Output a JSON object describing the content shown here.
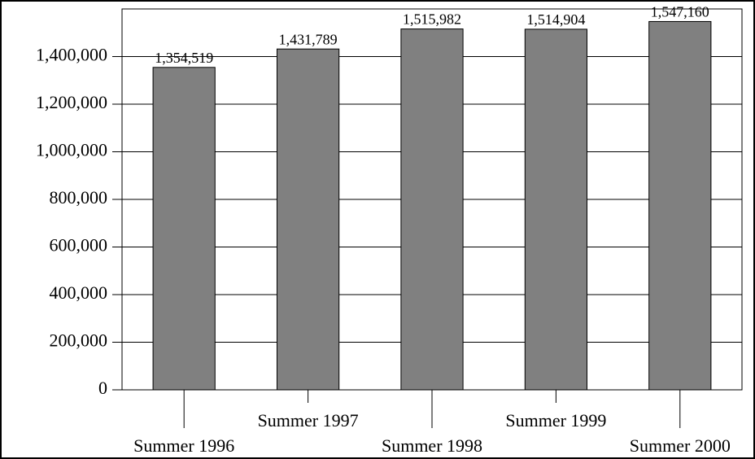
{
  "chart_data": {
    "type": "bar",
    "categories": [
      "Summer 1996",
      "Summer 1997",
      "Summer 1998",
      "Summer 1999",
      "Summer 2000"
    ],
    "values": [
      1354519,
      1431789,
      1515982,
      1514904,
      1547160
    ],
    "value_labels": [
      "1,354,519",
      "1,431,789",
      "1,515,982",
      "1,514,904",
      "1,547,160"
    ],
    "color": "#808080",
    "ylim": [
      0,
      1600000
    ],
    "yticks": [
      0,
      {
        "value": 200000,
        "label": "200,000"
      },
      {
        "value": 400000,
        "label": "400,000"
      },
      {
        "value": 600000,
        "label": "600,000"
      },
      {
        "value": 800000,
        "label": "800,000"
      },
      {
        "value": 1000000,
        "label": "1,000,000"
      },
      {
        "value": 1200000,
        "label": "1,200,000"
      },
      {
        "value": 1400000,
        "label": "1,400,000"
      }
    ],
    "grid": true
  }
}
